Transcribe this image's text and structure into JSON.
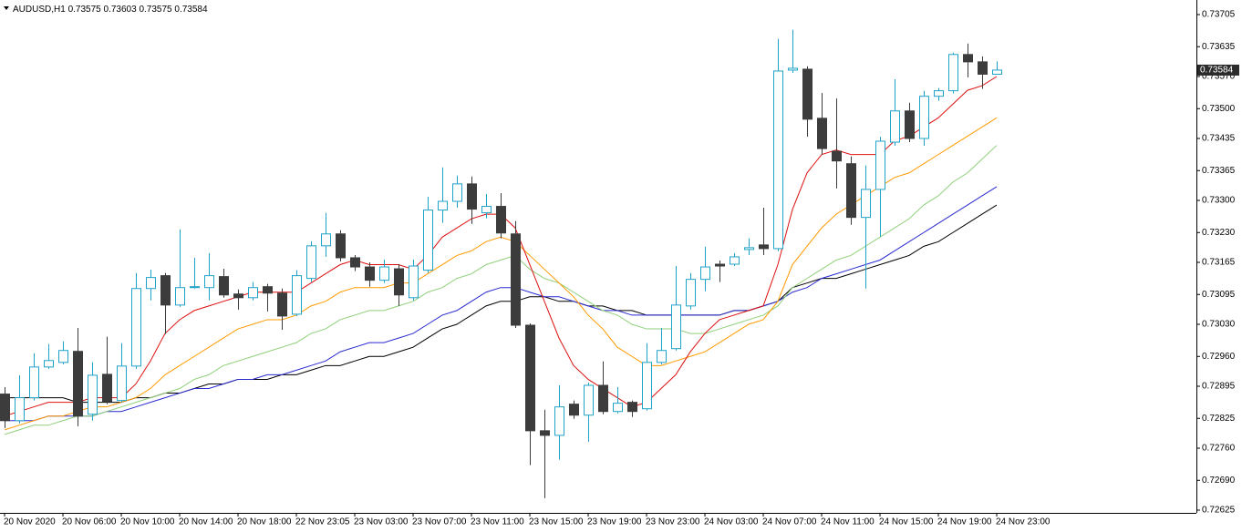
{
  "chart_data": {
    "type": "candlestick",
    "title": "AUDUSD,H1",
    "categories": [
      "20 Nov 2020",
      null,
      null,
      null,
      "20 Nov 06:00",
      null,
      null,
      null,
      "20 Nov 10:00",
      null,
      null,
      null,
      "20 Nov 14:00",
      null,
      null,
      null,
      "20 Nov 18:00",
      null,
      null,
      null,
      "22 Nov 23:05",
      null,
      null,
      null,
      "23 Nov 03:00",
      null,
      null,
      null,
      "23 Nov 07:00",
      null,
      null,
      null,
      "23 Nov 11:00",
      null,
      null,
      null,
      "23 Nov 15:00",
      null,
      null,
      null,
      "23 Nov 19:00",
      null,
      null,
      null,
      "23 Nov 23:00",
      null,
      null,
      null,
      "24 Nov 03:00",
      null,
      null,
      null,
      "24 Nov 07:00",
      null,
      null,
      null,
      "24 Nov 11:00",
      null,
      null,
      null,
      "24 Nov 15:00",
      null,
      null,
      null,
      "24 Nov 19:00",
      null,
      null,
      null,
      "24 Nov 23:00"
    ],
    "open": [
      0.72878,
      0.7282,
      0.7287,
      0.72937,
      0.72947,
      0.72971,
      0.72834,
      0.72921,
      0.72864,
      0.72939,
      0.73108,
      0.73136,
      0.73072,
      0.7311,
      0.7311,
      0.73134,
      0.73096,
      0.73088,
      0.73112,
      0.73098,
      0.73052,
      0.7313,
      0.73201,
      0.73227,
      0.73175,
      0.73155,
      0.73126,
      0.73151,
      0.73088,
      0.73148,
      0.73279,
      0.73298,
      0.73336,
      0.73273,
      0.73287,
      0.73227,
      0.73028,
      0.72798,
      0.72788,
      0.72856,
      0.72832,
      0.72897,
      0.7284,
      0.7286,
      0.72846,
      0.72947,
      0.72977,
      0.7307,
      0.73128,
      0.73161,
      0.73161,
      0.73193,
      0.73203,
      0.73195,
      0.73584,
      0.73586,
      0.73479,
      0.73407,
      0.7338,
      0.73263,
      0.73324,
      0.73427,
      0.73495,
      0.73435,
      0.73527,
      0.73539,
      0.73618,
      0.73602,
      0.73575
    ],
    "high": [
      0.72893,
      0.72919,
      0.72967,
      0.72987,
      0.72993,
      0.73022,
      0.72947,
      0.73003,
      0.72989,
      0.73142,
      0.73149,
      0.73142,
      0.73237,
      0.73175,
      0.73185,
      0.73151,
      0.73106,
      0.73122,
      0.73118,
      0.73108,
      0.73148,
      0.73211,
      0.73273,
      0.73235,
      0.73181,
      0.73165,
      0.73171,
      0.73161,
      0.73171,
      0.73308,
      0.73372,
      0.73354,
      0.73352,
      0.73314,
      0.73316,
      0.73255,
      0.73032,
      0.72844,
      0.72897,
      0.72864,
      0.72903,
      0.72949,
      0.72893,
      0.72864,
      0.72989,
      0.73022,
      0.73157,
      0.73142,
      0.73199,
      0.73169,
      0.73185,
      0.73217,
      0.73284,
      0.73652,
      0.73672,
      0.73592,
      0.73534,
      0.73522,
      0.73396,
      0.73376,
      0.73439,
      0.73564,
      0.73513,
      0.73539,
      0.73545,
      0.73622,
      0.73642,
      0.73614,
      0.73603
    ],
    "low": [
      0.72804,
      0.72814,
      0.72864,
      0.72933,
      0.72943,
      0.72808,
      0.7282,
      0.72856,
      0.7286,
      0.72933,
      0.73082,
      0.73009,
      0.73068,
      0.73108,
      0.73082,
      0.73088,
      0.73062,
      0.73082,
      0.73058,
      0.73018,
      0.73048,
      0.73122,
      0.73177,
      0.73167,
      0.73146,
      0.73112,
      0.7312,
      0.7307,
      0.73082,
      0.73142,
      0.73251,
      0.73284,
      0.73249,
      0.73261,
      0.73217,
      0.73022,
      0.72723,
      0.72651,
      0.72735,
      0.72824,
      0.72774,
      0.72834,
      0.72836,
      0.72828,
      0.72842,
      0.72943,
      0.72973,
      0.73062,
      0.73102,
      0.73122,
      0.73157,
      0.73181,
      0.73181,
      0.73189,
      0.73578,
      0.73439,
      0.734,
      0.73326,
      0.73247,
      0.73108,
      0.73221,
      0.73419,
      0.73427,
      0.73419,
      0.73517,
      0.73533,
      0.73568,
      0.73543,
      0.73575
    ],
    "close": [
      0.7282,
      0.7287,
      0.72937,
      0.72951,
      0.72973,
      0.7283,
      0.72919,
      0.72862,
      0.72939,
      0.73108,
      0.73132,
      0.73072,
      0.7311,
      0.73112,
      0.73136,
      0.73094,
      0.73088,
      0.7311,
      0.73098,
      0.73048,
      0.73136,
      0.73201,
      0.73227,
      0.73175,
      0.73155,
      0.73126,
      0.73155,
      0.73094,
      0.73157,
      0.73279,
      0.73298,
      0.73336,
      0.73281,
      0.73287,
      0.73229,
      0.73028,
      0.72798,
      0.72788,
      0.7285,
      0.72832,
      0.72897,
      0.7284,
      0.72858,
      0.7284,
      0.72947,
      0.72973,
      0.73072,
      0.73128,
      0.73155,
      0.73157,
      0.73177,
      0.73197,
      0.73195,
      0.73582,
      0.73588,
      0.73477,
      0.73413,
      0.73386,
      0.73263,
      0.73324,
      0.73429,
      0.73495,
      0.73435,
      0.73527,
      0.73539,
      0.73618,
      0.73602,
      0.73575,
      0.73584
    ],
    "bull_color": "#1fa3c8",
    "bear_color": "#3c3c3c",
    "lines": [
      {
        "color": "#000000",
        "values": [
          0.7287,
          0.7287,
          0.7287,
          0.7287,
          0.7287,
          0.7286,
          0.7286,
          0.7286,
          0.7286,
          0.7287,
          0.7287,
          0.7288,
          0.7288,
          0.7289,
          0.729,
          0.729,
          0.7291,
          0.7291,
          0.7291,
          0.7292,
          0.7292,
          0.7293,
          0.7294,
          0.7294,
          0.7295,
          0.7296,
          0.7296,
          0.7297,
          0.7298,
          0.73,
          0.7302,
          0.7303,
          0.7305,
          0.7307,
          0.7308,
          0.7308,
          0.7309,
          0.7309,
          0.7308,
          0.7308,
          0.7307,
          0.7307,
          0.7306,
          0.7306,
          0.7305,
          0.7305,
          0.7305,
          0.7305,
          0.7305,
          0.7305,
          0.7306,
          0.7306,
          0.7307,
          0.7308,
          0.7311,
          0.7312,
          0.7313,
          0.7313,
          0.7314,
          0.7315,
          0.7316,
          0.7317,
          0.7318,
          0.732,
          0.7321,
          0.7323,
          0.7325,
          0.7327,
          0.7329
        ]
      },
      {
        "color": "#2a2ad0",
        "values": [
          0.7282,
          0.7282,
          0.7282,
          0.7283,
          0.7283,
          0.7283,
          0.7283,
          0.7284,
          0.7284,
          0.7285,
          0.7286,
          0.7287,
          0.7288,
          0.7289,
          0.7289,
          0.729,
          0.7291,
          0.7291,
          0.7292,
          0.7292,
          0.7293,
          0.7294,
          0.7295,
          0.7297,
          0.7298,
          0.7299,
          0.7299,
          0.73,
          0.7301,
          0.7303,
          0.7305,
          0.7306,
          0.7308,
          0.731,
          0.7311,
          0.7311,
          0.731,
          0.7309,
          0.7309,
          0.7308,
          0.7307,
          0.7306,
          0.7306,
          0.7305,
          0.7305,
          0.7305,
          0.7305,
          0.7305,
          0.7305,
          0.7305,
          0.7306,
          0.7306,
          0.7307,
          0.7308,
          0.731,
          0.7311,
          0.7313,
          0.7314,
          0.7315,
          0.7316,
          0.7317,
          0.7319,
          0.7321,
          0.7323,
          0.7325,
          0.7327,
          0.7329,
          0.7331,
          0.7333
        ]
      },
      {
        "color": "#8fd07a",
        "values": [
          0.7279,
          0.728,
          0.7281,
          0.7281,
          0.7282,
          0.7283,
          0.7283,
          0.7284,
          0.7285,
          0.7286,
          0.7287,
          0.7288,
          0.7289,
          0.7291,
          0.7292,
          0.7294,
          0.7295,
          0.7296,
          0.7297,
          0.7298,
          0.7299,
          0.7301,
          0.7302,
          0.7304,
          0.7305,
          0.7306,
          0.7306,
          0.7307,
          0.7308,
          0.731,
          0.7311,
          0.7313,
          0.7314,
          0.7316,
          0.7317,
          0.7318,
          0.7315,
          0.7313,
          0.7312,
          0.731,
          0.7308,
          0.7306,
          0.7305,
          0.7303,
          0.7302,
          0.7302,
          0.7302,
          0.7301,
          0.7301,
          0.7302,
          0.7303,
          0.7304,
          0.7305,
          0.7307,
          0.7311,
          0.7313,
          0.7315,
          0.7317,
          0.7318,
          0.732,
          0.7322,
          0.7324,
          0.7326,
          0.7329,
          0.7331,
          0.7334,
          0.7336,
          0.7339,
          0.7342
        ]
      },
      {
        "color": "#ff9a00",
        "values": [
          0.728,
          0.7281,
          0.7282,
          0.7283,
          0.7283,
          0.7284,
          0.7285,
          0.7285,
          0.7286,
          0.7287,
          0.7289,
          0.7292,
          0.7294,
          0.7296,
          0.7298,
          0.73,
          0.7302,
          0.7303,
          0.7304,
          0.7304,
          0.7305,
          0.7307,
          0.7308,
          0.731,
          0.7311,
          0.7311,
          0.7311,
          0.7312,
          0.7312,
          0.7314,
          0.7316,
          0.7318,
          0.7319,
          0.7321,
          0.7322,
          0.7321,
          0.7318,
          0.7315,
          0.7312,
          0.7309,
          0.7305,
          0.7302,
          0.7298,
          0.7296,
          0.7294,
          0.7294,
          0.7295,
          0.7296,
          0.7297,
          0.7299,
          0.7301,
          0.7303,
          0.7304,
          0.7308,
          0.7316,
          0.732,
          0.7324,
          0.7327,
          0.7329,
          0.7331,
          0.7333,
          0.7335,
          0.7336,
          0.7338,
          0.734,
          0.7342,
          0.7344,
          0.7346,
          0.7348
        ]
      },
      {
        "color": "#dd1010",
        "values": [
          0.7283,
          0.7284,
          0.7285,
          0.7286,
          0.7286,
          0.7286,
          0.7287,
          0.7287,
          0.7287,
          0.729,
          0.7295,
          0.7301,
          0.7304,
          0.7306,
          0.7307,
          0.7308,
          0.7309,
          0.731,
          0.731,
          0.731,
          0.731,
          0.7312,
          0.7314,
          0.7316,
          0.7317,
          0.7316,
          0.7316,
          0.7316,
          0.7315,
          0.7318,
          0.7322,
          0.7324,
          0.7326,
          0.7327,
          0.7327,
          0.7324,
          0.7316,
          0.7308,
          0.73,
          0.7294,
          0.7291,
          0.7289,
          0.7287,
          0.7285,
          0.7286,
          0.7289,
          0.7292,
          0.7297,
          0.7301,
          0.7304,
          0.7305,
          0.7306,
          0.7307,
          0.7316,
          0.7328,
          0.7336,
          0.734,
          0.7341,
          0.734,
          0.734,
          0.734,
          0.7343,
          0.7344,
          0.7346,
          0.7348,
          0.7351,
          0.7354,
          0.7355,
          0.7357
        ]
      }
    ],
    "ylim": [
      0.72625,
      0.73705
    ],
    "yticks": [
      0.72625,
      {
        "value": 0.7269,
        "label": "0.72690"
      },
      {
        "value": 0.7276,
        "label": "0.72760"
      },
      0.72825,
      0.72895,
      {
        "value": 0.7296,
        "label": "0.72960"
      },
      {
        "value": 0.7303,
        "label": "0.73030"
      },
      0.73095,
      0.73165,
      {
        "value": 0.7323,
        "label": "0.73230"
      },
      {
        "value": 0.733,
        "label": "0.73300"
      },
      0.73365,
      0.73435,
      {
        "value": 0.735,
        "label": "0.73500"
      },
      {
        "value": 0.7357,
        "label": "0.73570"
      },
      0.73635,
      0.73705
    ],
    "grid": false
  }
}
